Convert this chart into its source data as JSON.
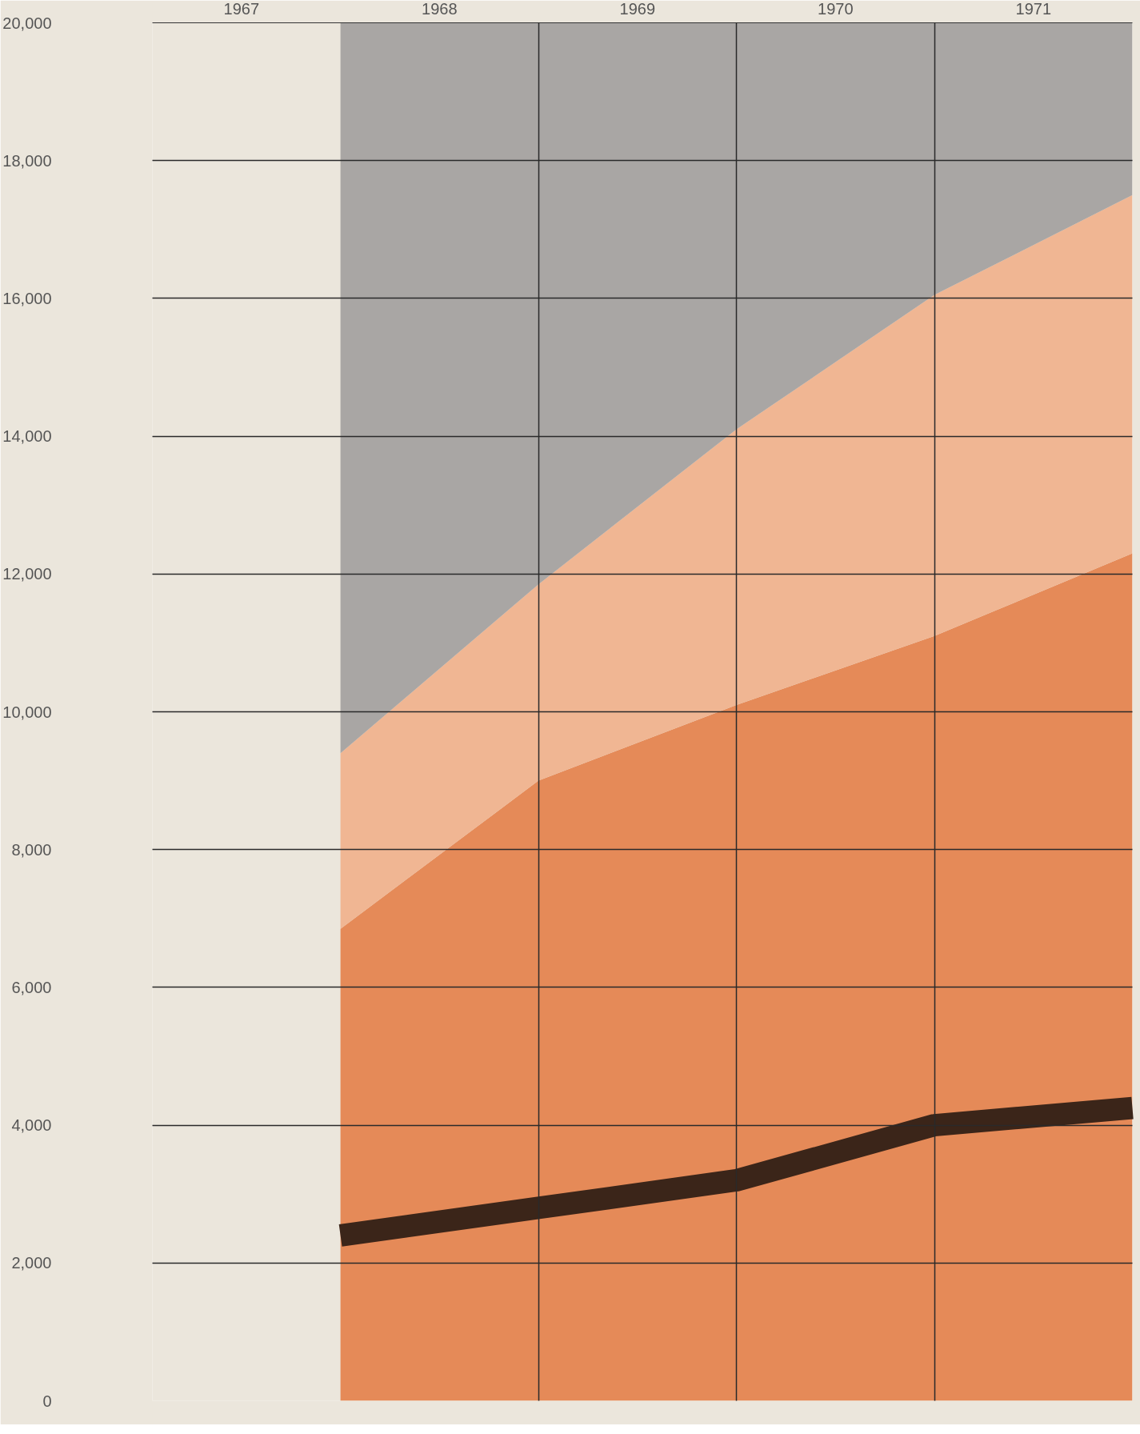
{
  "chart_data": {
    "type": "area",
    "stacked": true,
    "x": [
      1967.5,
      1968.5,
      1969.5,
      1970.5,
      1971.5
    ],
    "series": [
      {
        "color": "#e58a58",
        "values": [
          6850,
          9000,
          10100,
          11100,
          12300
        ]
      },
      {
        "color": "#f0b693",
        "values": [
          2550,
          2850,
          4000,
          4950,
          5200
        ]
      },
      {
        "color": "#a9a6a4",
        "values": [
          10600,
          8150,
          5900,
          3950,
          2500
        ]
      },
      {
        "type": "line",
        "color": "#3b2519",
        "values": [
          2400,
          2800,
          3200,
          4000,
          4250
        ]
      }
    ],
    "xlim": [
      1966.55,
      1971.5
    ],
    "ylim": [
      0,
      20000
    ],
    "xticks": [
      1967,
      1968,
      1969,
      1970,
      1971,
      {
        "value": 1968.5,
        "label": null
      },
      {
        "value": 1969.5,
        "label": null
      },
      {
        "value": 1970.5,
        "label": null
      }
    ],
    "yticks": [
      {
        "value": 0,
        "label": "0"
      },
      {
        "value": 2000,
        "label": "2,000"
      },
      {
        "value": 4000,
        "label": "4,000"
      },
      {
        "value": 6000,
        "label": "6,000"
      },
      {
        "value": 8000,
        "label": "8,000"
      },
      {
        "value": 10000,
        "label": "10,000"
      },
      {
        "value": 12000,
        "label": "12,000"
      },
      {
        "value": 14000,
        "label": "14,000"
      },
      {
        "value": 16000,
        "label": "16,000"
      },
      {
        "value": 18000,
        "label": "18,000"
      },
      {
        "value": 20000,
        "label": "20,000"
      }
    ],
    "grid": true
  }
}
